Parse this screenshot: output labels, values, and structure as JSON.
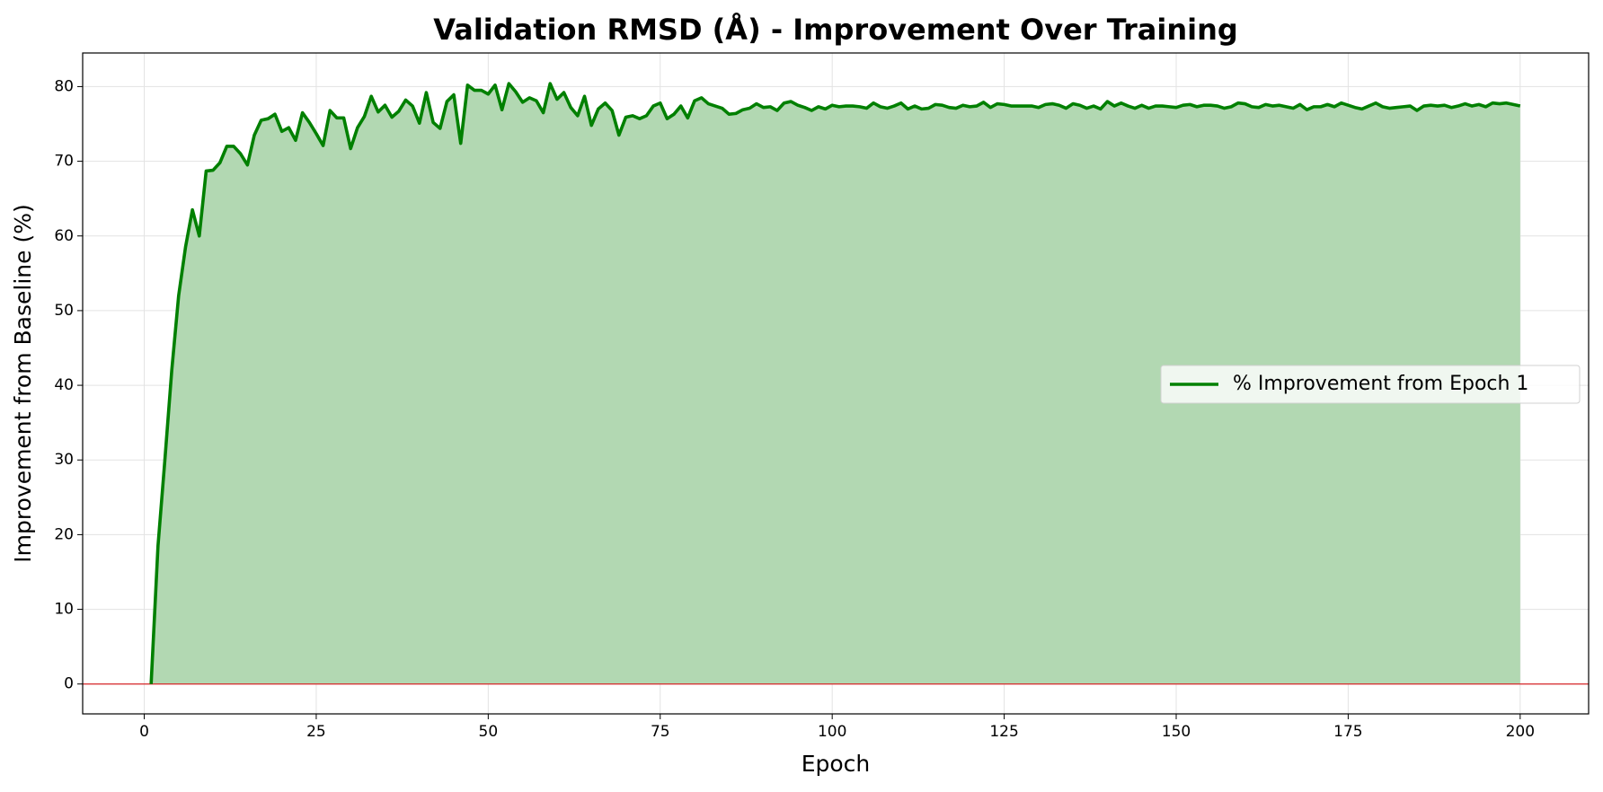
{
  "chart_data": {
    "type": "line",
    "title": "Validation RMSD (Å) - Improvement Over Training",
    "x_label": "Epoch",
    "y_label": "Improvement from Baseline (%)",
    "x": [
      1,
      2,
      3,
      4,
      5,
      6,
      7,
      8,
      9,
      10,
      11,
      12,
      13,
      14,
      15,
      16,
      17,
      18,
      19,
      20,
      21,
      22,
      23,
      24,
      25,
      26,
      27,
      28,
      29,
      30,
      31,
      32,
      33,
      34,
      35,
      36,
      37,
      38,
      39,
      40,
      41,
      42,
      43,
      44,
      45,
      46,
      47,
      48,
      49,
      50,
      51,
      52,
      53,
      54,
      55,
      56,
      57,
      58,
      59,
      60,
      61,
      62,
      63,
      64,
      65,
      66,
      67,
      68,
      69,
      70,
      71,
      72,
      73,
      74,
      75,
      76,
      77,
      78,
      79,
      80,
      81,
      82,
      83,
      84,
      85,
      86,
      87,
      88,
      89,
      90,
      91,
      92,
      93,
      94,
      95,
      96,
      97,
      98,
      99,
      100,
      101,
      102,
      103,
      104,
      105,
      106,
      107,
      108,
      109,
      110,
      111,
      112,
      113,
      114,
      115,
      116,
      117,
      118,
      119,
      120,
      121,
      122,
      123,
      124,
      125,
      126,
      127,
      128,
      129,
      130,
      131,
      132,
      133,
      134,
      135,
      136,
      137,
      138,
      139,
      140,
      141,
      142,
      143,
      144,
      145,
      146,
      147,
      148,
      149,
      150,
      151,
      152,
      153,
      154,
      155,
      156,
      157,
      158,
      159,
      160,
      161,
      162,
      163,
      164,
      165,
      166,
      167,
      168,
      169,
      170,
      171,
      172,
      173,
      174,
      175,
      176,
      177,
      178,
      179,
      180,
      181,
      182,
      183,
      184,
      185,
      186,
      187,
      188,
      189,
      190,
      191,
      192,
      193,
      194,
      195,
      196,
      197,
      198,
      199,
      200
    ],
    "series": [
      {
        "name": "% Improvement from Epoch 1",
        "color": "#008000",
        "fill_color": "#b2d8b2",
        "values": [
          0,
          18.5,
          30,
          42,
          52,
          58.5,
          63.5,
          60,
          68.7,
          68.8,
          69.8,
          72,
          72,
          71,
          69.5,
          73.5,
          75.5,
          75.7,
          76.3,
          74,
          74.5,
          72.8,
          76.5,
          75.2,
          73.7,
          72.1,
          76.8,
          75.8,
          75.8,
          71.7,
          74.5,
          76,
          78.7,
          76.6,
          77.5,
          75.9,
          76.7,
          78.2,
          77.4,
          75.1,
          79.2,
          75.2,
          74.4,
          78,
          78.9,
          72.4,
          80.2,
          79.5,
          79.5,
          79,
          80.2,
          76.9,
          80.4,
          79.3,
          77.9,
          78.5,
          78.1,
          76.5,
          80.4,
          78.3,
          79.2,
          77.2,
          76.1,
          78.7,
          74.8,
          77,
          77.8,
          76.8,
          73.5,
          75.9,
          76.1,
          75.7,
          76.1,
          77.4,
          77.8,
          75.7,
          76.3,
          77.4,
          75.8,
          78.1,
          78.5,
          77.7,
          77.4,
          77.1,
          76.3,
          76.4,
          76.9,
          77.1,
          77.7,
          77.2,
          77.3,
          76.8,
          77.8,
          78,
          77.5,
          77.2,
          76.8,
          77.3,
          77,
          77.5,
          77.3,
          77.4,
          77.4,
          77.3,
          77.1,
          77.8,
          77.3,
          77.1,
          77.4,
          77.8,
          77,
          77.4,
          77,
          77.1,
          77.6,
          77.5,
          77.2,
          77.1,
          77.5,
          77.3,
          77.4,
          77.9,
          77.2,
          77.7,
          77.6,
          77.4,
          77.4,
          77.4,
          77.4,
          77.2,
          77.6,
          77.7,
          77.5,
          77.1,
          77.7,
          77.5,
          77.1,
          77.4,
          77,
          78,
          77.4,
          77.8,
          77.4,
          77.1,
          77.5,
          77.1,
          77.4,
          77.4,
          77.3,
          77.2,
          77.5,
          77.6,
          77.3,
          77.5,
          77.5,
          77.4,
          77.1,
          77.3,
          77.8,
          77.7,
          77.3,
          77.2,
          77.6,
          77.4,
          77.5,
          77.3,
          77.1,
          77.6,
          76.9,
          77.3,
          77.3,
          77.6,
          77.3,
          77.8,
          77.5,
          77.2,
          77,
          77.4,
          77.8,
          77.3,
          77.1,
          77.2,
          77.3,
          77.4,
          76.8,
          77.4,
          77.5,
          77.4,
          77.5,
          77.2,
          77.4,
          77.7,
          77.4,
          77.6,
          77.3,
          77.8,
          77.7,
          77.8,
          77.6,
          77.4
        ]
      }
    ],
    "reference_line": {
      "value": 0,
      "color": "#d62728"
    },
    "xlim": [
      -8.95,
      209.95
    ],
    "xticks": [
      0,
      25,
      50,
      75,
      100,
      125,
      150,
      175,
      200
    ],
    "ylim": [
      -4,
      84.5
    ],
    "yticks": [
      0,
      10,
      20,
      30,
      40,
      50,
      60,
      70,
      80
    ],
    "grid": true,
    "legend": "center right"
  }
}
